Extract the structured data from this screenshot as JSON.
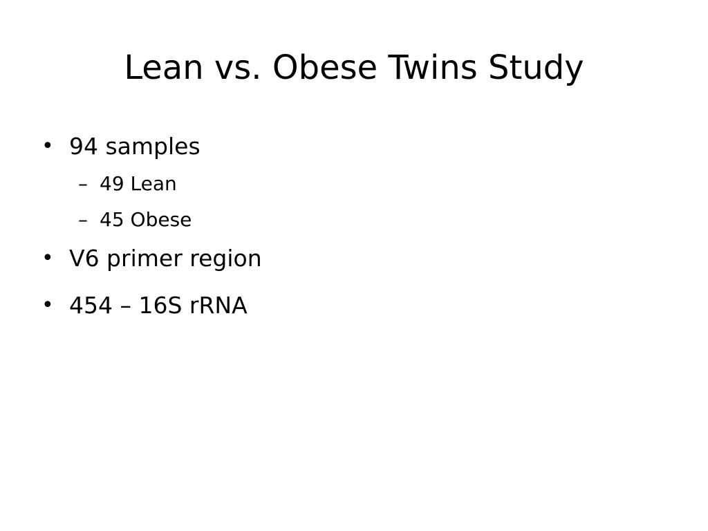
{
  "slide": {
    "title": "Lean vs. Obese Twins Study",
    "bullets": [
      {
        "text": "94 samples",
        "sub": [
          "49 Lean",
          "45 Obese"
        ]
      },
      {
        "text": "V6 primer region"
      },
      {
        "text": "454 – 16S rRNA"
      }
    ],
    "bullet_glyph": "•",
    "sub_glyph": "–"
  }
}
